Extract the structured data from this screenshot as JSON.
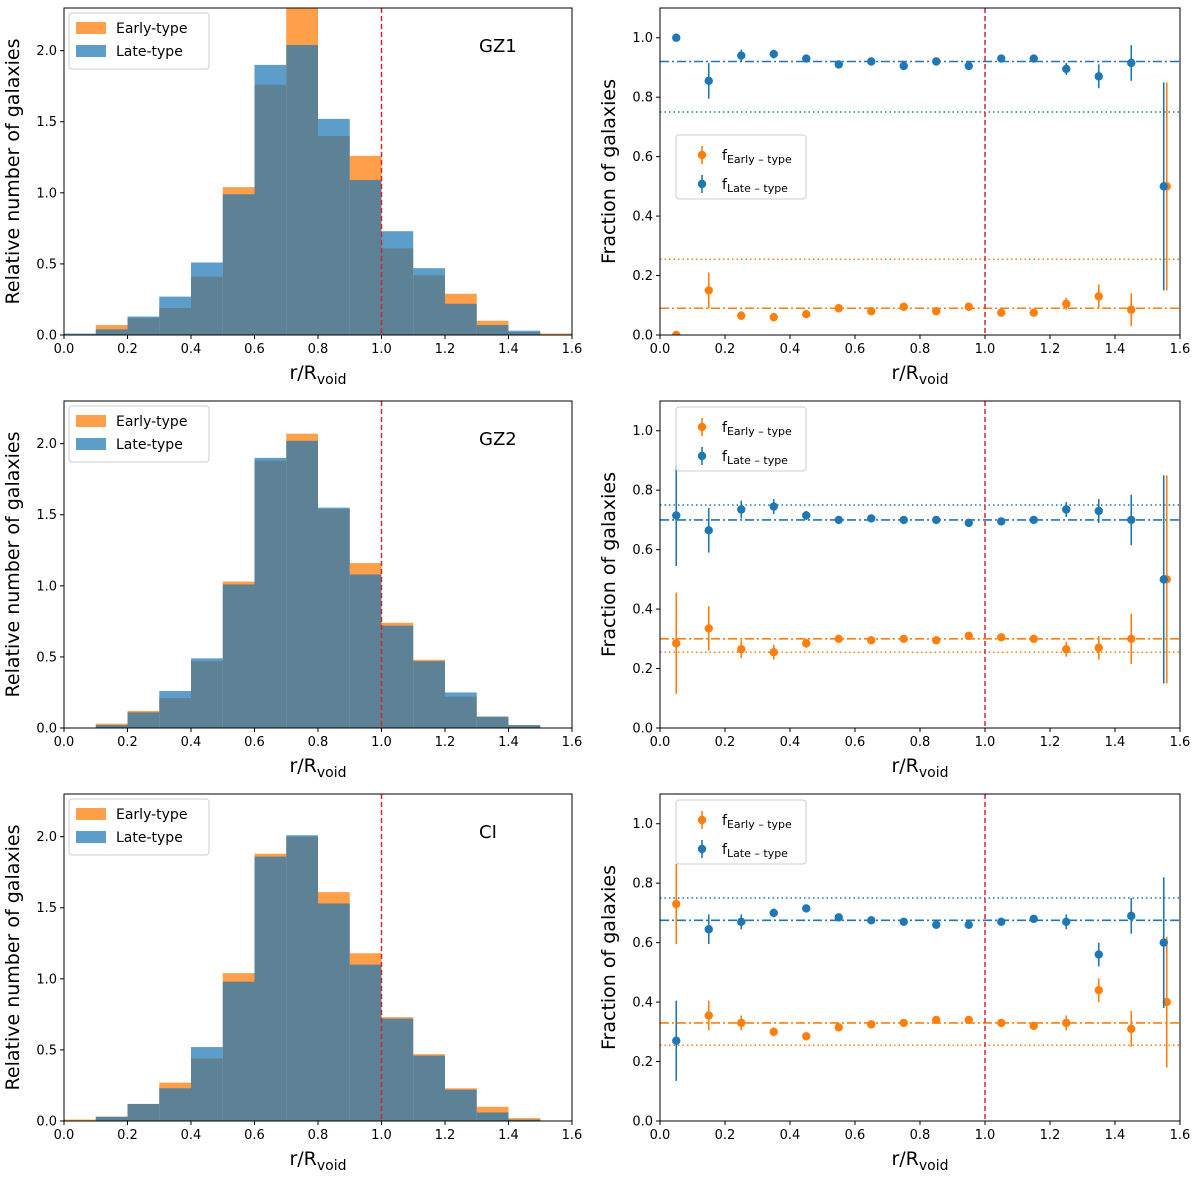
{
  "chart_data": [
    {
      "panel": "histogram",
      "tag": "GZ1",
      "type": "bar",
      "xlabel": "r/R",
      "xlabel_sub": "void",
      "ylabel": "Relative number of galaxies",
      "xlim": [
        0,
        1.6
      ],
      "ylim": [
        0,
        2.3
      ],
      "xticks": [
        "0.0",
        "0.2",
        "0.4",
        "0.6",
        "0.8",
        "1.0",
        "1.2",
        "1.4",
        "1.6"
      ],
      "yticks": [
        "0.0",
        "0.5",
        "1.0",
        "1.5",
        "2.0"
      ],
      "bin_edges": [
        0.0,
        0.1,
        0.2,
        0.3,
        0.4,
        0.5,
        0.6,
        0.7,
        0.8,
        0.9,
        1.0,
        1.1,
        1.2,
        1.3,
        1.4,
        1.5,
        1.6
      ],
      "vline": 1.0,
      "series": [
        {
          "name": "Early-type",
          "values": [
            0.0,
            0.07,
            0.12,
            0.19,
            0.41,
            1.04,
            1.76,
            2.3,
            1.4,
            1.26,
            0.61,
            0.42,
            0.29,
            0.1,
            0.02,
            0.01
          ]
        },
        {
          "name": "Late-type",
          "values": [
            0.01,
            0.04,
            0.13,
            0.27,
            0.51,
            0.99,
            1.9,
            2.04,
            1.52,
            1.09,
            0.73,
            0.47,
            0.22,
            0.07,
            0.03,
            0.0
          ]
        }
      ],
      "legend": [
        "Early-type",
        "Late-type"
      ]
    },
    {
      "panel": "fraction",
      "type": "scatter",
      "xlabel": "r/R",
      "xlabel_sub": "void",
      "ylabel": "Fraction of galaxies",
      "xlim": [
        0,
        1.6
      ],
      "ylim": [
        0,
        1.1
      ],
      "xticks": [
        "0.0",
        "0.2",
        "0.4",
        "0.6",
        "0.8",
        "1.0",
        "1.2",
        "1.4",
        "1.6"
      ],
      "yticks": [
        "0.0",
        "0.2",
        "0.4",
        "0.6",
        "0.8",
        "1.0"
      ],
      "x": [
        0.05,
        0.15,
        0.25,
        0.35,
        0.45,
        0.55,
        0.65,
        0.75,
        0.85,
        0.95,
        1.05,
        1.15,
        1.25,
        1.35,
        1.45,
        1.55
      ],
      "vline": 1.0,
      "legend": [
        {
          "main": "f",
          "sub": "Early – type"
        },
        {
          "main": "f",
          "sub": "Late – type"
        }
      ],
      "legend_position": "center-left",
      "series": [
        {
          "name": "Early-type",
          "mean": 0.09,
          "reference": 0.255,
          "values": [
            0.0,
            0.15,
            0.065,
            0.06,
            0.07,
            0.09,
            0.08,
            0.095,
            0.08,
            0.095,
            0.075,
            0.075,
            0.105,
            0.13,
            0.085,
            0.5
          ],
          "errors": [
            0.0,
            0.06,
            0.015,
            0.015,
            0.01,
            0.01,
            0.01,
            0.01,
            0.01,
            0.01,
            0.01,
            0.01,
            0.02,
            0.04,
            0.055,
            0.35
          ]
        },
        {
          "name": "Late-type",
          "mean": 0.92,
          "reference": 0.75,
          "values": [
            1.0,
            0.855,
            0.94,
            0.945,
            0.93,
            0.91,
            0.92,
            0.905,
            0.92,
            0.905,
            0.93,
            0.93,
            0.895,
            0.87,
            0.915,
            0.5
          ],
          "errors": [
            0.0,
            0.06,
            0.02,
            0.015,
            0.01,
            0.01,
            0.01,
            0.01,
            0.01,
            0.01,
            0.01,
            0.01,
            0.02,
            0.04,
            0.06,
            0.35
          ]
        }
      ]
    },
    {
      "panel": "histogram",
      "tag": "GZ2",
      "type": "bar",
      "xlabel": "r/R",
      "xlabel_sub": "void",
      "ylabel": "Relative number of galaxies",
      "xlim": [
        0,
        1.6
      ],
      "ylim": [
        0,
        2.3
      ],
      "xticks": [
        "0.0",
        "0.2",
        "0.4",
        "0.6",
        "0.8",
        "1.0",
        "1.2",
        "1.4",
        "1.6"
      ],
      "yticks": [
        "0.0",
        "0.5",
        "1.0",
        "1.5",
        "2.0"
      ],
      "bin_edges": [
        0.0,
        0.1,
        0.2,
        0.3,
        0.4,
        0.5,
        0.6,
        0.7,
        0.8,
        0.9,
        1.0,
        1.1,
        1.2,
        1.3,
        1.4,
        1.5,
        1.6
      ],
      "vline": 1.0,
      "series": [
        {
          "name": "Early-type",
          "values": [
            0.0,
            0.03,
            0.12,
            0.21,
            0.47,
            1.03,
            1.88,
            2.07,
            1.54,
            1.16,
            0.74,
            0.48,
            0.22,
            0.08,
            0.02,
            0.0
          ]
        },
        {
          "name": "Late-type",
          "values": [
            0.0,
            0.02,
            0.11,
            0.26,
            0.49,
            1.01,
            1.9,
            2.02,
            1.55,
            1.08,
            0.72,
            0.47,
            0.25,
            0.08,
            0.02,
            0.0
          ]
        }
      ],
      "legend": [
        "Early-type",
        "Late-type"
      ]
    },
    {
      "panel": "fraction",
      "type": "scatter",
      "xlabel": "r/R",
      "xlabel_sub": "void",
      "ylabel": "Fraction of galaxies",
      "xlim": [
        0,
        1.6
      ],
      "ylim": [
        0,
        1.1
      ],
      "xticks": [
        "0.0",
        "0.2",
        "0.4",
        "0.6",
        "0.8",
        "1.0",
        "1.2",
        "1.4",
        "1.6"
      ],
      "yticks": [
        "0.0",
        "0.2",
        "0.4",
        "0.6",
        "0.8",
        "1.0"
      ],
      "x": [
        0.05,
        0.15,
        0.25,
        0.35,
        0.45,
        0.55,
        0.65,
        0.75,
        0.85,
        0.95,
        1.05,
        1.15,
        1.25,
        1.35,
        1.45,
        1.55
      ],
      "vline": 1.0,
      "legend": [
        {
          "main": "f",
          "sub": "Early – type"
        },
        {
          "main": "f",
          "sub": "Late – type"
        }
      ],
      "legend_position": "top-left",
      "series": [
        {
          "name": "Early-type",
          "mean": 0.3,
          "reference": 0.255,
          "values": [
            0.285,
            0.335,
            0.265,
            0.255,
            0.285,
            0.3,
            0.295,
            0.3,
            0.295,
            0.31,
            0.305,
            0.3,
            0.265,
            0.27,
            0.3,
            0.5
          ],
          "errors": [
            0.17,
            0.075,
            0.03,
            0.025,
            0.015,
            0.01,
            0.01,
            0.01,
            0.01,
            0.012,
            0.01,
            0.012,
            0.025,
            0.04,
            0.085,
            0.35
          ]
        },
        {
          "name": "Late-type",
          "mean": 0.7,
          "reference": 0.75,
          "values": [
            0.715,
            0.665,
            0.735,
            0.745,
            0.715,
            0.7,
            0.705,
            0.7,
            0.7,
            0.69,
            0.695,
            0.7,
            0.735,
            0.73,
            0.7,
            0.5
          ],
          "errors": [
            0.17,
            0.075,
            0.03,
            0.025,
            0.015,
            0.01,
            0.01,
            0.01,
            0.01,
            0.012,
            0.01,
            0.012,
            0.025,
            0.04,
            0.085,
            0.35
          ]
        }
      ]
    },
    {
      "panel": "histogram",
      "tag": "CI",
      "type": "bar",
      "xlabel": "r/R",
      "xlabel_sub": "void",
      "ylabel": "Relative number of galaxies",
      "xlim": [
        0,
        1.6
      ],
      "ylim": [
        0,
        2.3
      ],
      "xticks": [
        "0.0",
        "0.2",
        "0.4",
        "0.6",
        "0.8",
        "1.0",
        "1.2",
        "1.4",
        "1.6"
      ],
      "yticks": [
        "0.0",
        "0.5",
        "1.0",
        "1.5",
        "2.0"
      ],
      "bin_edges": [
        0.0,
        0.1,
        0.2,
        0.3,
        0.4,
        0.5,
        0.6,
        0.7,
        0.8,
        0.9,
        1.0,
        1.1,
        1.2,
        1.3,
        1.4,
        1.5,
        1.6
      ],
      "vline": 1.0,
      "series": [
        {
          "name": "Early-type",
          "values": [
            0.01,
            0.03,
            0.12,
            0.27,
            0.44,
            1.04,
            1.88,
            2.0,
            1.61,
            1.18,
            0.73,
            0.47,
            0.23,
            0.1,
            0.02,
            0.0
          ]
        },
        {
          "name": "Late-type",
          "values": [
            0.0,
            0.03,
            0.12,
            0.23,
            0.52,
            0.98,
            1.86,
            2.01,
            1.53,
            1.1,
            0.72,
            0.46,
            0.22,
            0.06,
            0.01,
            0.0
          ]
        }
      ],
      "legend": [
        "Early-type",
        "Late-type"
      ]
    },
    {
      "panel": "fraction",
      "type": "scatter",
      "xlabel": "r/R",
      "xlabel_sub": "void",
      "ylabel": "Fraction of galaxies",
      "xlim": [
        0,
        1.6
      ],
      "ylim": [
        0,
        1.1
      ],
      "xticks": [
        "0.0",
        "0.2",
        "0.4",
        "0.6",
        "0.8",
        "1.0",
        "1.2",
        "1.4",
        "1.6"
      ],
      "yticks": [
        "0.0",
        "0.2",
        "0.4",
        "0.6",
        "0.8",
        "1.0"
      ],
      "x": [
        0.05,
        0.15,
        0.25,
        0.35,
        0.45,
        0.55,
        0.65,
        0.75,
        0.85,
        0.95,
        1.05,
        1.15,
        1.25,
        1.35,
        1.45,
        1.55
      ],
      "vline": 1.0,
      "legend": [
        {
          "main": "f",
          "sub": "Early – type"
        },
        {
          "main": "f",
          "sub": "Late – type"
        }
      ],
      "legend_position": "top-left",
      "series": [
        {
          "name": "Early-type",
          "mean": 0.33,
          "reference": 0.255,
          "values": [
            0.73,
            0.355,
            0.33,
            0.3,
            0.285,
            0.315,
            0.325,
            0.33,
            0.34,
            0.34,
            0.33,
            0.32,
            0.33,
            0.44,
            0.31,
            0.4
          ],
          "errors": [
            0.135,
            0.05,
            0.025,
            0.015,
            0.01,
            0.01,
            0.01,
            0.01,
            0.01,
            0.01,
            0.01,
            0.012,
            0.025,
            0.04,
            0.06,
            0.22
          ]
        },
        {
          "name": "Late-type",
          "mean": 0.675,
          "reference": 0.75,
          "values": [
            0.27,
            0.645,
            0.67,
            0.7,
            0.715,
            0.685,
            0.675,
            0.67,
            0.66,
            0.66,
            0.67,
            0.68,
            0.67,
            0.56,
            0.69,
            0.6
          ],
          "errors": [
            0.135,
            0.05,
            0.025,
            0.015,
            0.01,
            0.01,
            0.01,
            0.01,
            0.01,
            0.01,
            0.01,
            0.012,
            0.025,
            0.04,
            0.06,
            0.22
          ]
        }
      ]
    }
  ],
  "colors": {
    "early": "#ff7f0e",
    "late": "#1f77b4",
    "vline": "#d62728",
    "axis": "#000000"
  }
}
